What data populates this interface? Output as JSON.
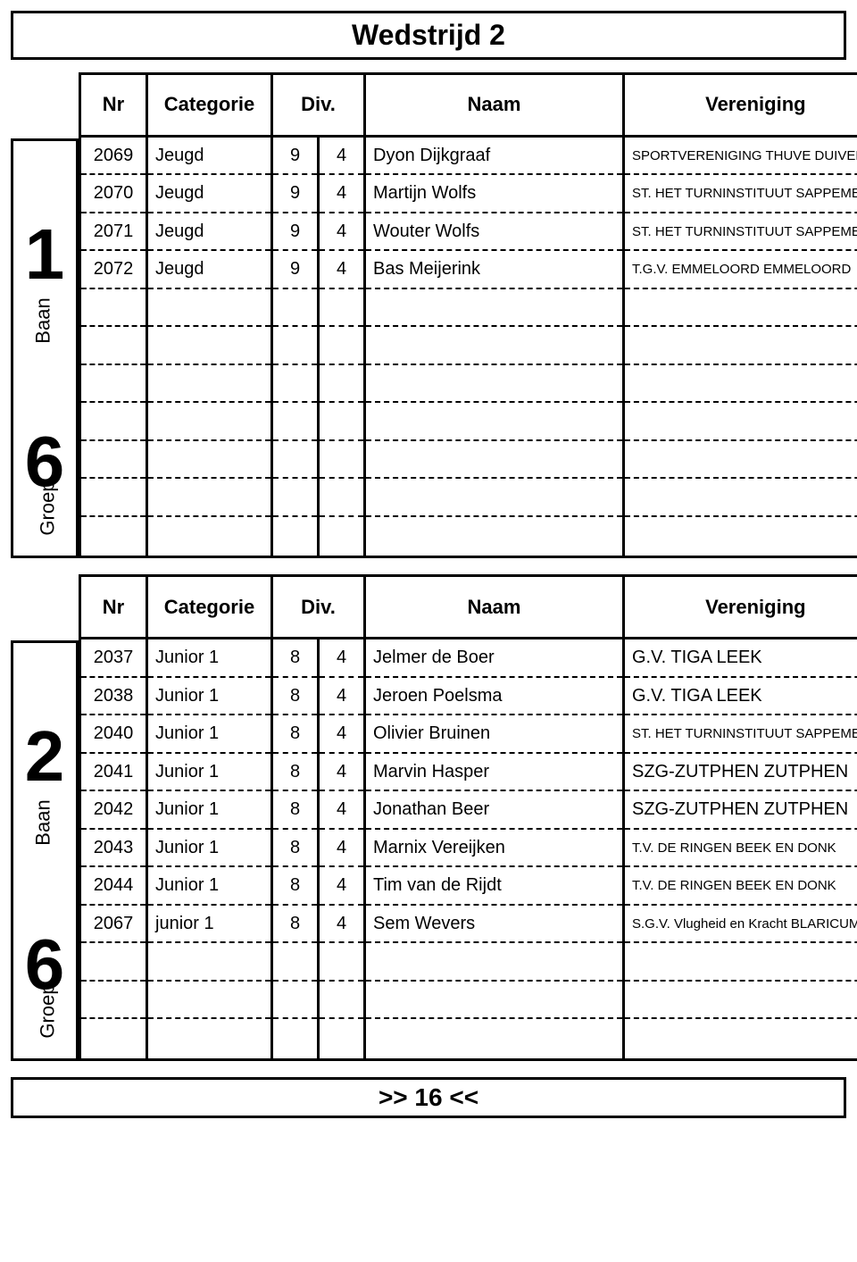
{
  "title": "Wedstrijd 2",
  "footer": ">> 16 <<",
  "rows_per_block": 11,
  "columns": {
    "nr": "Nr",
    "categorie": "Categorie",
    "div1": "Div.",
    "div2": "",
    "naam": "Naam",
    "vereniging": "Vereniging"
  },
  "blocks": [
    {
      "left_upper_num": "1",
      "left_upper_label": "Baan",
      "left_lower_num": "6",
      "left_lower_label": "Groep",
      "rows": [
        {
          "nr": "2069",
          "cat": "Jeugd",
          "d1": "9",
          "d2": "4",
          "naam": "Dyon Dijkgraaf",
          "ver": "SPORTVERENIGING THUVE DUIVEN",
          "ver_small": true
        },
        {
          "nr": "2070",
          "cat": "Jeugd",
          "d1": "9",
          "d2": "4",
          "naam": "Martijn Wolfs",
          "ver": "ST. HET TURNINSTITUUT SAPPEMEER",
          "ver_small": true
        },
        {
          "nr": "2071",
          "cat": "Jeugd",
          "d1": "9",
          "d2": "4",
          "naam": "Wouter Wolfs",
          "ver": "ST. HET TURNINSTITUUT SAPPEMEER",
          "ver_small": true
        },
        {
          "nr": "2072",
          "cat": "Jeugd",
          "d1": "9",
          "d2": "4",
          "naam": "Bas Meijerink",
          "ver": "T.G.V. EMMELOORD EMMELOORD",
          "ver_small": true
        },
        {
          "nr": "",
          "cat": "",
          "d1": "",
          "d2": "",
          "naam": "",
          "ver": ""
        },
        {
          "nr": "",
          "cat": "",
          "d1": "",
          "d2": "",
          "naam": "",
          "ver": ""
        },
        {
          "nr": "",
          "cat": "",
          "d1": "",
          "d2": "",
          "naam": "",
          "ver": ""
        },
        {
          "nr": "",
          "cat": "",
          "d1": "",
          "d2": "",
          "naam": "",
          "ver": ""
        },
        {
          "nr": "",
          "cat": "",
          "d1": "",
          "d2": "",
          "naam": "",
          "ver": ""
        },
        {
          "nr": "",
          "cat": "",
          "d1": "",
          "d2": "",
          "naam": "",
          "ver": ""
        },
        {
          "nr": "",
          "cat": "",
          "d1": "",
          "d2": "",
          "naam": "",
          "ver": ""
        }
      ]
    },
    {
      "left_upper_num": "2",
      "left_upper_label": "Baan",
      "left_lower_num": "6",
      "left_lower_label": "Groep",
      "rows": [
        {
          "nr": "2037",
          "cat": "Junior 1",
          "d1": "8",
          "d2": "4",
          "naam": "Jelmer de Boer",
          "ver": "G.V. TIGA LEEK"
        },
        {
          "nr": "2038",
          "cat": "Junior 1",
          "d1": "8",
          "d2": "4",
          "naam": "Jeroen Poelsma",
          "ver": "G.V. TIGA LEEK"
        },
        {
          "nr": "2040",
          "cat": "Junior 1",
          "d1": "8",
          "d2": "4",
          "naam": "Olivier Bruinen",
          "ver": "ST. HET TURNINSTITUUT SAPPEMEER",
          "ver_small": true
        },
        {
          "nr": "2041",
          "cat": "Junior 1",
          "d1": "8",
          "d2": "4",
          "naam": "Marvin Hasper",
          "ver": "SZG-ZUTPHEN ZUTPHEN"
        },
        {
          "nr": "2042",
          "cat": "Junior 1",
          "d1": "8",
          "d2": "4",
          "naam": "Jonathan Beer",
          "ver": "SZG-ZUTPHEN ZUTPHEN"
        },
        {
          "nr": "2043",
          "cat": "Junior 1",
          "d1": "8",
          "d2": "4",
          "naam": "Marnix Vereijken",
          "ver": "T.V. DE RINGEN BEEK EN DONK",
          "ver_small": true
        },
        {
          "nr": "2044",
          "cat": "Junior 1",
          "d1": "8",
          "d2": "4",
          "naam": "Tim van de Rijdt",
          "ver": "T.V. DE RINGEN BEEK EN DONK",
          "ver_small": true
        },
        {
          "nr": "2067",
          "cat": "junior 1",
          "d1": "8",
          "d2": "4",
          "naam": "Sem Wevers",
          "ver": "S.G.V. Vlugheid en Kracht BLARICUM",
          "ver_small": true
        },
        {
          "nr": "",
          "cat": "",
          "d1": "",
          "d2": "",
          "naam": "",
          "ver": ""
        },
        {
          "nr": "",
          "cat": "",
          "d1": "",
          "d2": "",
          "naam": "",
          "ver": ""
        },
        {
          "nr": "",
          "cat": "",
          "d1": "",
          "d2": "",
          "naam": "",
          "ver": ""
        }
      ]
    }
  ]
}
